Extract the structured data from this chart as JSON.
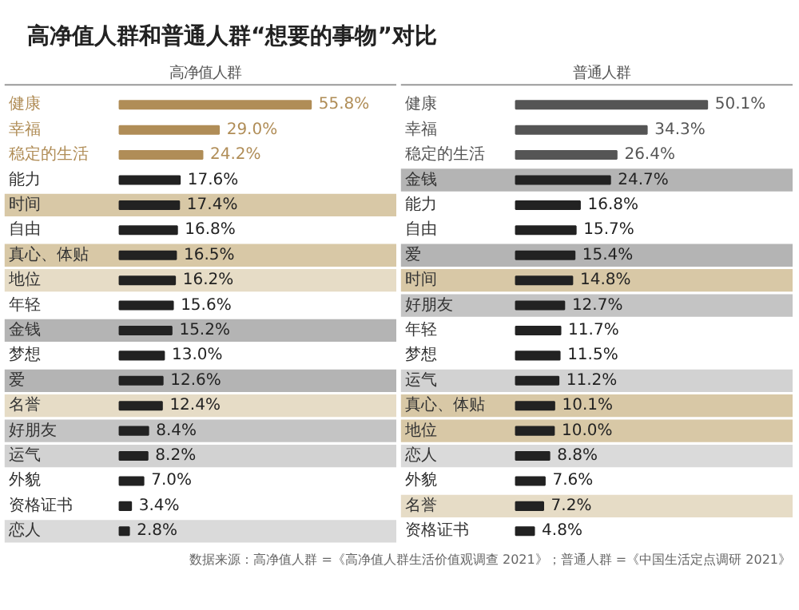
{
  "chart_data": [
    {
      "type": "bar",
      "orientation": "horizontal",
      "title": "高净值人群和普通人群“想要的事物”对比",
      "subtitle": "高净值人群",
      "categories": [
        "健康",
        "幸福",
        "稳定的生活",
        "能力",
        "时间",
        "自由",
        "真心、体贴",
        "地位",
        "年轻",
        "金钱",
        "梦想",
        "爱",
        "名誉",
        "好朋友",
        "运气",
        "外貌",
        "资格证书",
        "恋人"
      ],
      "values": [
        55.8,
        29.0,
        24.2,
        17.6,
        17.4,
        16.8,
        16.5,
        16.2,
        15.6,
        15.2,
        13.0,
        12.6,
        12.4,
        8.4,
        8.2,
        7.0,
        3.4,
        2.8
      ],
      "value_labels": [
        "55.8%",
        "29.0%",
        "24.2%",
        "17.6%",
        "17.4%",
        "16.8%",
        "16.5%",
        "16.2%",
        "15.6%",
        "15.2%",
        "13.0%",
        "12.6%",
        "12.4%",
        "8.4%",
        "8.2%",
        "7.0%",
        "3.4%",
        "2.8%"
      ],
      "colors": [
        "#b08d57",
        "#b08d57",
        "#b08d57",
        "#222222",
        "#222222",
        "#222222",
        "#222222",
        "#222222",
        "#222222",
        "#222222",
        "#222222",
        "#222222",
        "#222222",
        "#222222",
        "#222222",
        "#222222",
        "#222222",
        "#222222"
      ],
      "bands": [
        {
          "axis": "y",
          "from": "时间",
          "to": "时间",
          "color": "#d8c8a6"
        },
        {
          "axis": "y",
          "from": "真心、体贴",
          "to": "真心、体贴",
          "color": "#d8c8a6"
        },
        {
          "axis": "y",
          "from": "地位",
          "to": "地位",
          "color": "#e6dcc6"
        },
        {
          "axis": "y",
          "from": "金钱",
          "to": "金钱",
          "color": "#b4b4b4"
        },
        {
          "axis": "y",
          "from": "爱",
          "to": "爱",
          "color": "#b4b4b4"
        },
        {
          "axis": "y",
          "from": "名誉",
          "to": "名誉",
          "color": "#e6dcc6"
        },
        {
          "axis": "y",
          "from": "好朋友",
          "to": "好朋友",
          "color": "#c4c4c4"
        },
        {
          "axis": "y",
          "from": "运气",
          "to": "运气",
          "color": "#d2d2d2"
        },
        {
          "axis": "y",
          "from": "恋人",
          "to": "恋人",
          "color": "#dadada"
        }
      ]
    },
    {
      "type": "bar",
      "orientation": "horizontal",
      "subtitle": "普通人群",
      "categories": [
        "健康",
        "幸福",
        "稳定的生活",
        "金钱",
        "能力",
        "自由",
        "爱",
        "时间",
        "好朋友",
        "年轻",
        "梦想",
        "运气",
        "真心、体贴",
        "地位",
        "恋人",
        "外貌",
        "名誉",
        "资格证书"
      ],
      "values": [
        50.1,
        34.3,
        26.4,
        24.7,
        16.8,
        15.7,
        15.4,
        14.8,
        12.7,
        11.7,
        11.5,
        11.2,
        10.1,
        10.0,
        8.8,
        7.6,
        7.2,
        4.8
      ],
      "value_labels": [
        "50.1%",
        "34.3%",
        "26.4%",
        "24.7%",
        "16.8%",
        "15.7%",
        "15.4%",
        "14.8%",
        "12.7%",
        "11.7%",
        "11.5%",
        "11.2%",
        "10.1%",
        "10.0%",
        "8.8%",
        "7.6%",
        "7.2%",
        "4.8%"
      ],
      "colors": [
        "#555555",
        "#555555",
        "#555555",
        "#222222",
        "#222222",
        "#222222",
        "#222222",
        "#222222",
        "#222222",
        "#222222",
        "#222222",
        "#222222",
        "#222222",
        "#222222",
        "#222222",
        "#222222",
        "#222222",
        "#222222"
      ],
      "bands": [
        {
          "axis": "y",
          "from": "金钱",
          "to": "金钱",
          "color": "#b4b4b4"
        },
        {
          "axis": "y",
          "from": "爱",
          "to": "爱",
          "color": "#b4b4b4"
        },
        {
          "axis": "y",
          "from": "时间",
          "to": "时间",
          "color": "#d8c8a6"
        },
        {
          "axis": "y",
          "from": "好朋友",
          "to": "好朋友",
          "color": "#c4c4c4"
        },
        {
          "axis": "y",
          "from": "运气",
          "to": "运气",
          "color": "#d2d2d2"
        },
        {
          "axis": "y",
          "from": "真心、体贴",
          "to": "真心、体贴",
          "color": "#d8c8a6"
        },
        {
          "axis": "y",
          "from": "地位",
          "to": "地位",
          "color": "#d8c8a6"
        },
        {
          "axis": "y",
          "from": "恋人",
          "to": "恋人",
          "color": "#dadada"
        },
        {
          "axis": "y",
          "from": "名誉",
          "to": "名誉",
          "color": "#e6dcc6"
        }
      ],
      "annotations": [
        "数据来源：高净值人群 =《高净值人群生活价值观调查 2021》；普通人群 =《中国生活定点调研 2021》"
      ]
    }
  ]
}
